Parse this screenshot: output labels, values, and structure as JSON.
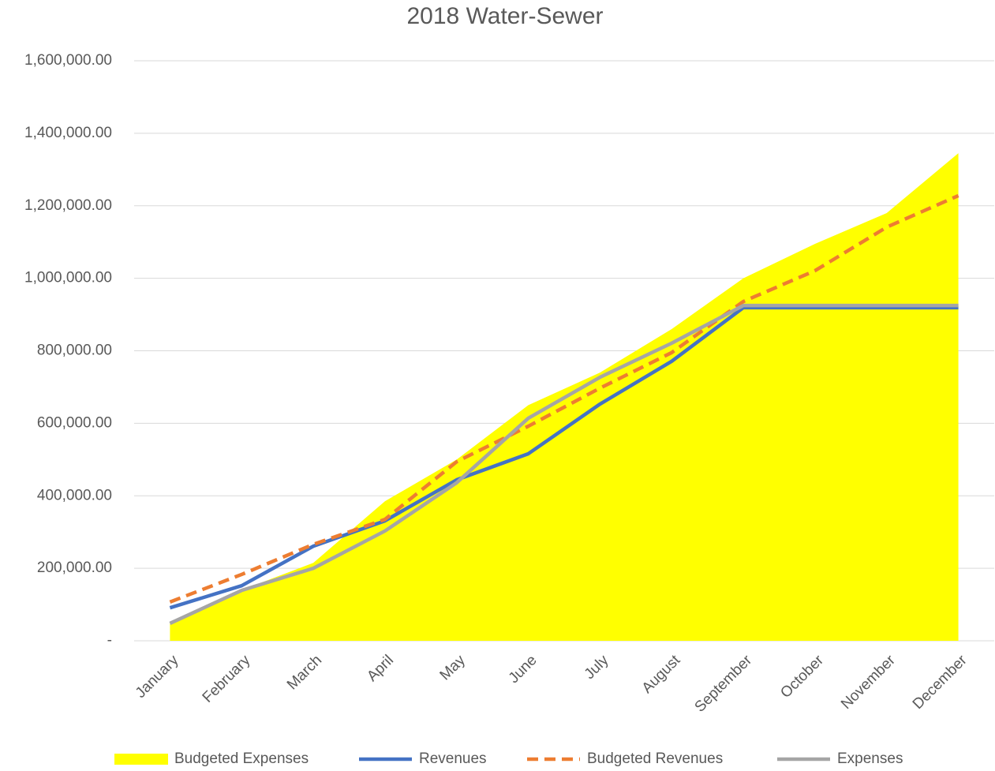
{
  "chart_data": {
    "type": "line",
    "title": "2018 Water-Sewer",
    "categories": [
      "January",
      "February",
      "March",
      "April",
      "May",
      "June",
      "July",
      "August",
      "September",
      "October",
      "November",
      "December"
    ],
    "series": [
      {
        "name": "Budgeted Expenses",
        "kind": "area",
        "color": "#ffff00",
        "values": [
          50000,
          140000,
          215000,
          385000,
          500000,
          650000,
          740000,
          860000,
          1000000,
          1095000,
          1180000,
          1345000
        ]
      },
      {
        "name": "Revenues",
        "kind": "line",
        "color": "#4472c4",
        "values": [
          91000,
          152000,
          261000,
          331000,
          444000,
          516000,
          653000,
          771000,
          919000,
          919000,
          919000,
          919000
        ]
      },
      {
        "name": "Budgeted Revenues",
        "kind": "line",
        "dashed": true,
        "color": "#ed7d31",
        "values": [
          107000,
          183000,
          266000,
          335000,
          494000,
          592000,
          697000,
          795000,
          936000,
          1021000,
          1141000,
          1228000
        ]
      },
      {
        "name": "Expenses",
        "kind": "line",
        "color": "#a5a5a5",
        "values": [
          48000,
          139000,
          200000,
          303000,
          436000,
          614000,
          727000,
          821000,
          925000,
          925000,
          925000,
          925000
        ]
      }
    ],
    "ylim": [
      0,
      1600000
    ],
    "yticks": [
      {
        "value": 0,
        "label": "-"
      },
      {
        "value": 200000,
        "label": "200,000.00"
      },
      {
        "value": 400000,
        "label": "400,000.00"
      },
      {
        "value": 600000,
        "label": "600,000.00"
      },
      {
        "value": 800000,
        "label": "800,000.00"
      },
      {
        "value": 1000000,
        "label": "1,000,000.00"
      },
      {
        "value": 1200000,
        "label": "1,200,000.00"
      },
      {
        "value": 1400000,
        "label": "1,400,000.00"
      },
      {
        "value": 1600000,
        "label": "1,600,000.00"
      }
    ],
    "grid": true,
    "legend": "bottom"
  }
}
